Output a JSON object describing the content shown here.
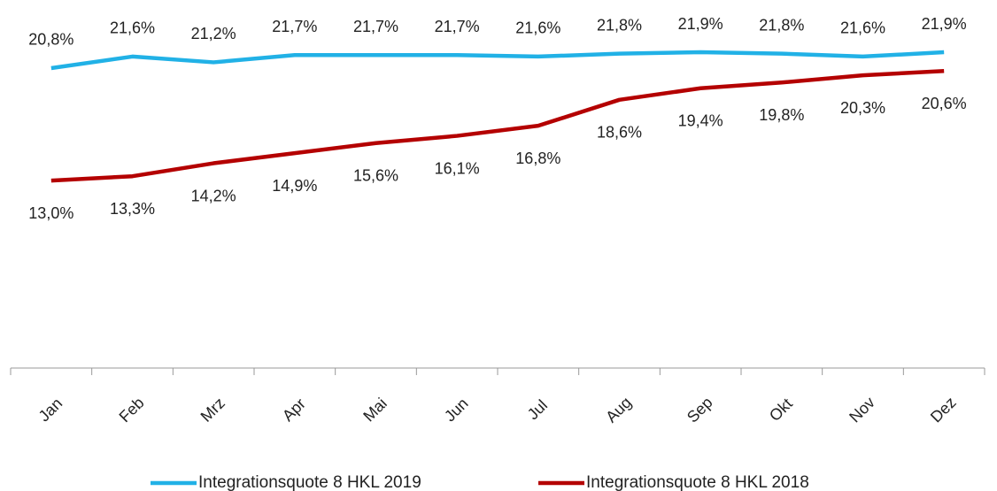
{
  "chart_data": {
    "type": "line",
    "categories": [
      "Jan",
      "Feb",
      "Mrz",
      "Apr",
      "Mai",
      "Jun",
      "Jul",
      "Aug",
      "Sep",
      "Okt",
      "Nov",
      "Dez"
    ],
    "series": [
      {
        "name": "Integrationsquote 8 HKL 2019",
        "color": "#21b1e6",
        "values": [
          20.8,
          21.6,
          21.2,
          21.7,
          21.7,
          21.7,
          21.6,
          21.8,
          21.9,
          21.8,
          21.6,
          21.9
        ],
        "value_labels": [
          "20,8%",
          "21,6%",
          "21,2%",
          "21,7%",
          "21,7%",
          "21,7%",
          "21,6%",
          "21,8%",
          "21,9%",
          "21,8%",
          "21,6%",
          "21,9%"
        ]
      },
      {
        "name": "Integrationsquote 8 HKL 2018",
        "color": "#b40000",
        "values": [
          13.0,
          13.3,
          14.2,
          14.9,
          15.6,
          16.1,
          16.8,
          18.6,
          19.4,
          19.8,
          20.3,
          20.6
        ],
        "value_labels": [
          "13,0%",
          "13,3%",
          "14,2%",
          "14,9%",
          "15,6%",
          "16,1%",
          "16,8%",
          "18,6%",
          "19,4%",
          "19,8%",
          "20,3%",
          "20,6%"
        ]
      }
    ],
    "ylim": [
      0,
      25.5
    ],
    "legend": "bottom"
  }
}
